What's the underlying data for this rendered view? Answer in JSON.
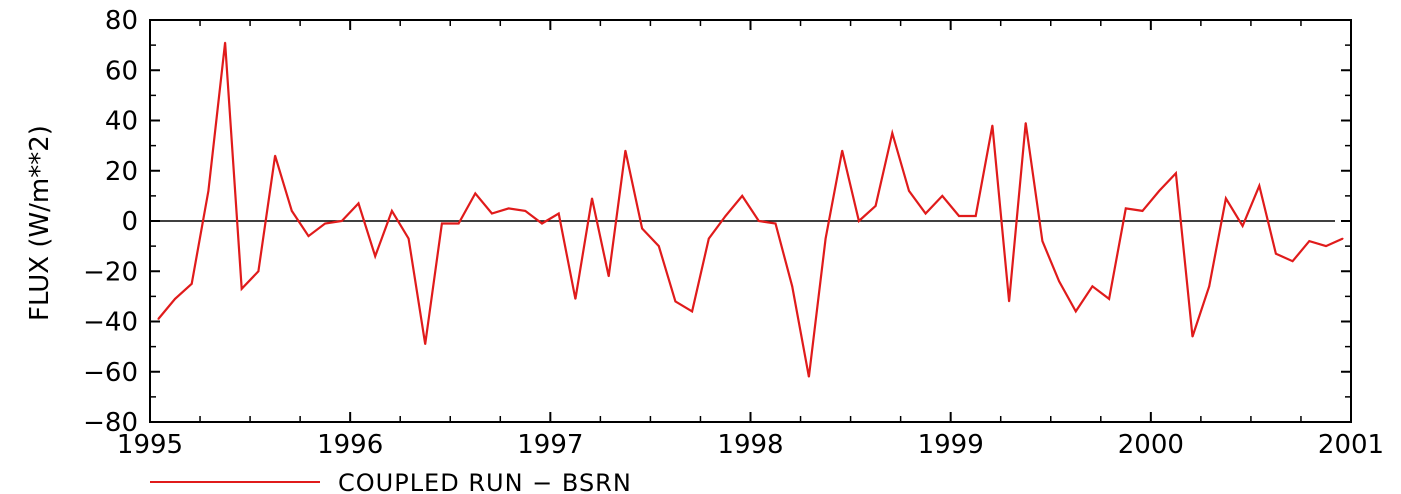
{
  "chart_data": {
    "type": "line",
    "ylabel": "FLUX (W/m**2)",
    "xlabel": "",
    "xlim": [
      1995,
      2001
    ],
    "ylim": [
      -80,
      80
    ],
    "xticks": [
      1995,
      1996,
      1997,
      1998,
      1999,
      2000,
      2001
    ],
    "xtick_labels": [
      "1995",
      "1996",
      "1997",
      "1998",
      "1999",
      "2000",
      "2001"
    ],
    "yticks": [
      -80,
      -60,
      -40,
      -20,
      0,
      20,
      40,
      60,
      80
    ],
    "ytick_labels": [
      "−80",
      "−60",
      "−40",
      "−20",
      "0",
      "20",
      "40",
      "60",
      "80"
    ],
    "zero_line": true,
    "grid": false,
    "legend_position": "bottom",
    "series": [
      {
        "name": "COUPLED RUN − BSRN",
        "color": "#e01b1b",
        "x": [
          1995.0417,
          1995.125,
          1995.2083,
          1995.2917,
          1995.375,
          1995.4583,
          1995.5417,
          1995.625,
          1995.7083,
          1995.7917,
          1995.875,
          1995.9583,
          1996.0417,
          1996.125,
          1996.2083,
          1996.2917,
          1996.375,
          1996.4583,
          1996.5417,
          1996.625,
          1996.7083,
          1996.7917,
          1996.875,
          1996.9583,
          1997.0417,
          1997.125,
          1997.2083,
          1997.2917,
          1997.375,
          1997.4583,
          1997.5417,
          1997.625,
          1997.7083,
          1997.7917,
          1997.875,
          1997.9583,
          1998.0417,
          1998.125,
          1998.2083,
          1998.2917,
          1998.375,
          1998.4583,
          1998.5417,
          1998.625,
          1998.7083,
          1998.7917,
          1998.875,
          1998.9583,
          1999.0417,
          1999.125,
          1999.2083,
          1999.2917,
          1999.375,
          1999.4583,
          1999.5417,
          1999.625,
          1999.7083,
          1999.7917,
          1999.875,
          1999.9583,
          2000.0417,
          2000.125,
          2000.2083,
          2000.2917,
          2000.375,
          2000.4583,
          2000.5417,
          2000.625,
          2000.7083,
          2000.7917,
          2000.875,
          2000.9583
        ],
        "y": [
          -39,
          -31,
          -25,
          12,
          71,
          -27,
          -20,
          26,
          4,
          -6,
          -1,
          0,
          7,
          -14,
          4,
          -7,
          -49,
          -1,
          -1,
          11,
          3,
          5,
          4,
          -1,
          3,
          -31,
          9,
          -22,
          28,
          -3,
          -10,
          -32,
          -36,
          -7,
          2,
          10,
          0,
          -1,
          -26,
          -62,
          -7,
          28,
          0,
          6,
          35,
          12,
          3,
          10,
          2,
          2,
          38,
          -32,
          39,
          -8,
          -24,
          -36,
          -26,
          -31,
          5,
          4,
          12,
          19,
          -46,
          -26,
          9,
          -2,
          14,
          -13,
          -16,
          -8,
          -10,
          -7
        ]
      }
    ]
  }
}
